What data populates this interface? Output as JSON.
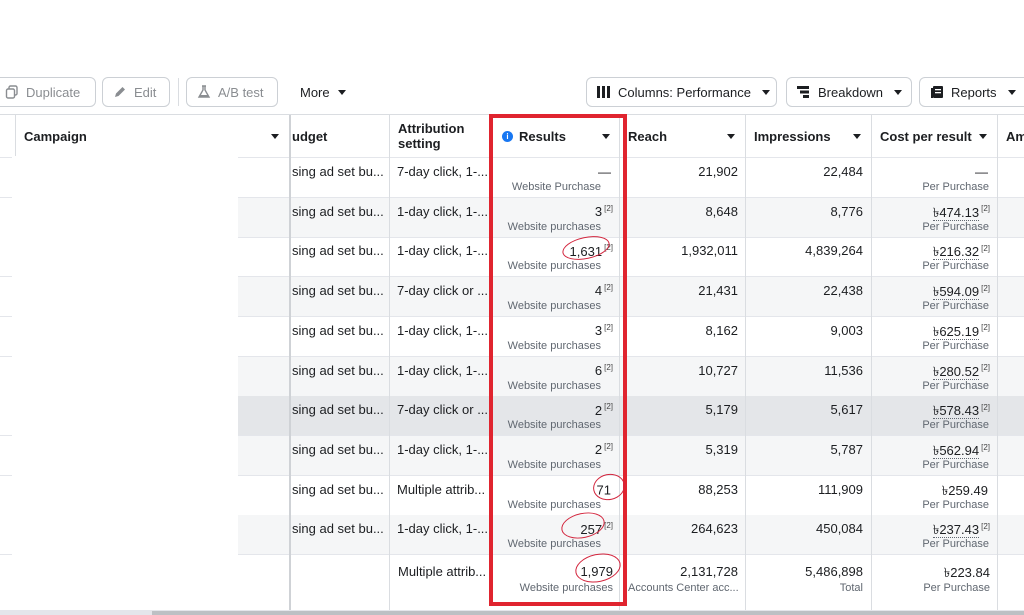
{
  "toolbar": {
    "duplicate": "Duplicate",
    "edit": "Edit",
    "ab_test": "A/B test",
    "more": "More",
    "columns": "Columns: Performance",
    "breakdown": "Breakdown",
    "reports": "Reports"
  },
  "columns": {
    "campaign": "Campaign",
    "budget": "udget",
    "attribution": "Attribution setting",
    "results": "Results",
    "reach": "Reach",
    "impressions": "Impressions",
    "cost_per_result": "Cost per result",
    "amount": "Am"
  },
  "rows": [
    {
      "budget": "sing ad set bu...",
      "attribution": "7-day click, 1-...",
      "result": "—",
      "result_note": "",
      "result_label": "Website Purchase",
      "reach": "21,902",
      "impressions": "22,484",
      "cost": "—",
      "cost_note": "",
      "cost_label": "Per Purchase"
    },
    {
      "budget": "sing ad set bu...",
      "attribution": "1-day click, 1-...",
      "result": "3",
      "result_note": "[2]",
      "result_label": "Website purchases",
      "reach": "8,648",
      "impressions": "8,776",
      "cost": "৳474.13",
      "cost_note": "[2]",
      "cost_label": "Per Purchase"
    },
    {
      "budget": "sing ad set bu...",
      "attribution": "1-day click, 1-...",
      "result": "1,631",
      "result_note": "[2]",
      "result_label": "Website purchases",
      "reach": "1,932,011",
      "impressions": "4,839,264",
      "cost": "৳216.32",
      "cost_note": "[2]",
      "cost_label": "Per Purchase"
    },
    {
      "budget": "sing ad set bu...",
      "attribution": "7-day click or ...",
      "result": "4",
      "result_note": "[2]",
      "result_label": "Website purchases",
      "reach": "21,431",
      "impressions": "22,438",
      "cost": "৳594.09",
      "cost_note": "[2]",
      "cost_label": "Per Purchase"
    },
    {
      "budget": "sing ad set bu...",
      "attribution": "1-day click, 1-...",
      "result": "3",
      "result_note": "[2]",
      "result_label": "Website purchases",
      "reach": "8,162",
      "impressions": "9,003",
      "cost": "৳625.19",
      "cost_note": "[2]",
      "cost_label": "Per Purchase"
    },
    {
      "budget": "sing ad set bu...",
      "attribution": "1-day click, 1-...",
      "result": "6",
      "result_note": "[2]",
      "result_label": "Website purchases",
      "reach": "10,727",
      "impressions": "11,536",
      "cost": "৳280.52",
      "cost_note": "[2]",
      "cost_label": "Per Purchase"
    },
    {
      "budget": "sing ad set bu...",
      "attribution": "7-day click or ...",
      "result": "2",
      "result_note": "[2]",
      "result_label": "Website purchases",
      "reach": "5,179",
      "impressions": "5,617",
      "cost": "৳578.43",
      "cost_note": "[2]",
      "cost_label": "Per Purchase"
    },
    {
      "budget": "sing ad set bu...",
      "attribution": "1-day click, 1-...",
      "result": "2",
      "result_note": "[2]",
      "result_label": "Website purchases",
      "reach": "5,319",
      "impressions": "5,787",
      "cost": "৳562.94",
      "cost_note": "[2]",
      "cost_label": "Per Purchase"
    },
    {
      "budget": "sing ad set bu...",
      "attribution": "Multiple attrib...",
      "result": "71",
      "result_note": "",
      "result_label": "Website purchases",
      "reach": "88,253",
      "impressions": "111,909",
      "cost": "৳259.49",
      "cost_note": "",
      "cost_label": "Per Purchase"
    },
    {
      "budget": "sing ad set bu...",
      "attribution": "1-day click, 1-...",
      "result": "257",
      "result_note": "[2]",
      "result_label": "Website purchases",
      "reach": "264,623",
      "impressions": "450,084",
      "cost": "৳237.43",
      "cost_note": "[2]",
      "cost_label": "Per Purchase"
    }
  ],
  "summary": {
    "attribution": "Multiple attrib...",
    "result": "1,979",
    "result_label": "Website purchases",
    "reach": "2,131,728",
    "reach_label": "Accounts Center acc...",
    "impressions": "5,486,898",
    "impressions_label": "Total",
    "cost": "৳223.84",
    "cost_label": "Per Purchase"
  },
  "colors": {
    "highlight_box": "#e0242f",
    "annotation_circle": "#d3253d",
    "info_icon": "#1877f2"
  }
}
